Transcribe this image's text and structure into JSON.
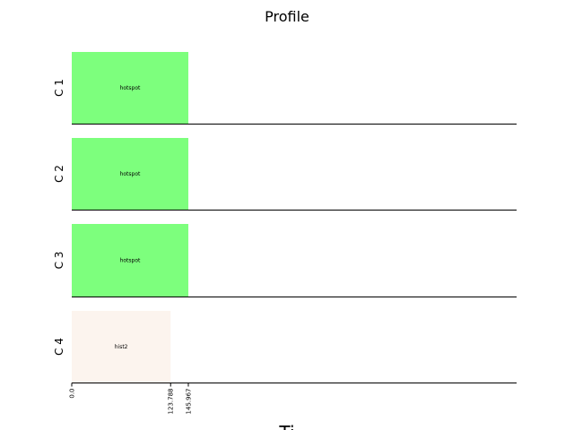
{
  "chart_data": {
    "type": "bar",
    "title": "Profile",
    "xlabel": "Ti",
    "ylabel": "",
    "rows": [
      "C 1",
      "C 2",
      "C 3",
      "C 4"
    ],
    "bars": [
      {
        "row": "C 1",
        "label": "hotspot",
        "start": 0.0,
        "end": 145.967,
        "color": "#7dff7d"
      },
      {
        "row": "C 2",
        "label": "hotspot",
        "start": 0.0,
        "end": 145.967,
        "color": "#7dff7d"
      },
      {
        "row": "C 3",
        "label": "hotspot",
        "start": 0.0,
        "end": 145.967,
        "color": "#7dff7d"
      },
      {
        "row": "C 4",
        "label": "hist2",
        "start": 0.0,
        "end": 123.788,
        "color": "#fcf4ee"
      }
    ],
    "xticks": [
      {
        "value": 0.0,
        "label": "0.0"
      },
      {
        "value": 123.788,
        "label": "123.788"
      },
      {
        "value": 145.967,
        "label": "145.967"
      }
    ],
    "xlim": [
      0,
      557
    ]
  }
}
